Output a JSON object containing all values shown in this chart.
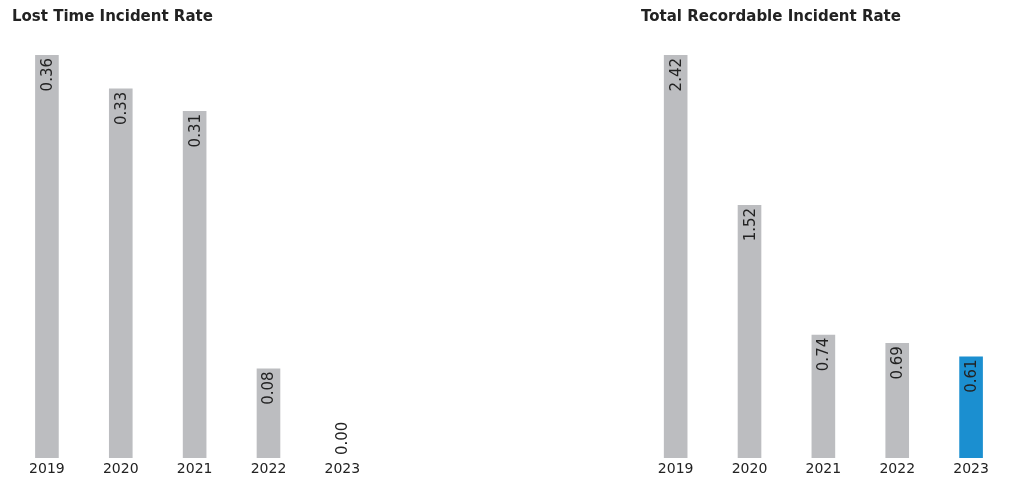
{
  "chart_data": [
    {
      "type": "bar",
      "title": "Lost Time Incident Rate",
      "categories": [
        "2019",
        "2020",
        "2021",
        "2022",
        "2023"
      ],
      "values": [
        0.36,
        0.33,
        0.31,
        0.08,
        0.0
      ],
      "colors": [
        "#bcbdc0",
        "#bcbdc0",
        "#bcbdc0",
        "#bcbdc0",
        "#9fd3e8"
      ],
      "value_labels": [
        "0.36",
        "0.33",
        "0.31",
        "0.08",
        "0.00"
      ]
    },
    {
      "type": "bar",
      "title": "Total Recordable Incident Rate",
      "categories": [
        "2019",
        "2020",
        "2021",
        "2022",
        "2023"
      ],
      "values": [
        2.42,
        1.52,
        0.74,
        0.69,
        0.61
      ],
      "colors": [
        "#bcbdc0",
        "#bcbdc0",
        "#bcbdc0",
        "#bcbdc0",
        "#1b8fd0"
      ],
      "value_labels": [
        "2.42",
        "1.52",
        "0.74",
        "0.69",
        "0.61"
      ]
    }
  ]
}
